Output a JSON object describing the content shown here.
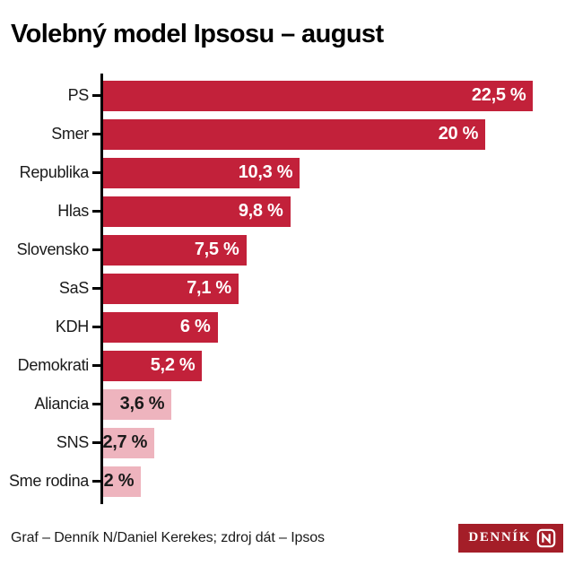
{
  "title": "Volebný model Ipsosu – august",
  "chart_data": {
    "type": "bar",
    "orientation": "horizontal",
    "title": "Volebný model Ipsosu – august",
    "unit": "%",
    "categories": [
      "PS",
      "Smer",
      "Republika",
      "Hlas",
      "Slovensko",
      "SaS",
      "KDH",
      "Demokrati",
      "Aliancia",
      "SNS",
      "Sme rodina"
    ],
    "values": [
      22.5,
      20,
      10.3,
      9.8,
      7.5,
      7.1,
      6,
      5.2,
      3.6,
      2.7,
      2
    ],
    "value_labels": [
      "22,5 %",
      "20 %",
      "10,3 %",
      "9,8 %",
      "7,5 %",
      "7,1 %",
      "6 %",
      "5,2 %",
      "3,6 %",
      "2,7 %",
      "2 %"
    ],
    "below_5_percent": [
      false,
      false,
      false,
      false,
      false,
      false,
      false,
      false,
      true,
      true,
      true
    ],
    "xlim": [
      0,
      24
    ],
    "grid": false,
    "legend": false,
    "value_label_position": "inside-bar-right",
    "axis_style": "left category axis with tick marks, no x-axis scale shown"
  },
  "colors": {
    "bar_main": "#C2213A",
    "bar_below_threshold": "#EEB4BE",
    "value_on_dark": "#FFFFFF",
    "value_on_light": "#1A1A1A",
    "axis": "#000000",
    "title_text": "#000000",
    "footer_text": "#1A1A1A",
    "logo_background": "#A41E28",
    "logo_text": "#FFFFFF",
    "background": "#FFFFFF"
  },
  "footer": {
    "credit": "Graf – Denník N/Daniel Kerekes; zdroj dát – Ipsos",
    "logo": {
      "wordmark": "DENNÍK",
      "monogram": "N"
    }
  }
}
